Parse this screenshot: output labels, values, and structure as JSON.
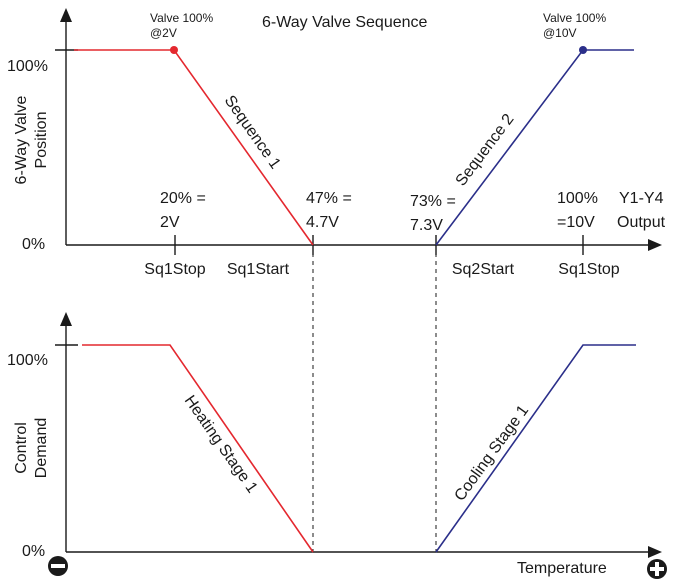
{
  "colors": {
    "heating": "#e4282f",
    "cooling": "#2b2f8a",
    "axis": "#1a1a1a"
  },
  "title": "6-Way Valve Sequence",
  "top": {
    "ylabel_line1": "6-Way Valve",
    "ylabel_line2": "Position",
    "ytick_100": "100%",
    "ytick_0": "0%",
    "valve_left_line1": "Valve 100%",
    "valve_left_line2": "@2V",
    "valve_right_line1": "Valve 100%",
    "valve_right_line2": "@10V",
    "seq1": "Sequence 1",
    "seq2": "Sequence 2",
    "v20_line1": "20% =",
    "v20_line2": "2V",
    "v47_line1": "47% =",
    "v47_line2": "4.7V",
    "v73_line1": "73% =",
    "v73_line2": "7.3V",
    "v100_line1": "100%",
    "v100_line2": "=10V",
    "output_line1": "Y1-Y4",
    "output_line2": "Output",
    "sq1stop_left": "Sq1Stop",
    "sq1start": "Sq1Start",
    "sq2start": "Sq2Start",
    "sq1stop_right": "Sq1Stop"
  },
  "bottom": {
    "ylabel_line1": "Control",
    "ylabel_line2": "Demand",
    "ytick_100": "100%",
    "ytick_0": "0%",
    "heating": "Heating Stage 1",
    "cooling": "Cooling Stage 1",
    "xlabel": "Temperature"
  },
  "icons": {
    "minus": "minus-circle-icon",
    "plus": "plus-circle-icon"
  },
  "chart_data": [
    {
      "type": "line",
      "title": "6-Way Valve Sequence",
      "ylabel": "6-Way Valve Position",
      "xlabel": "Y1-Y4 Output",
      "series": [
        {
          "name": "Sequence 1",
          "x": [
            0,
            2,
            4.7
          ],
          "y": [
            100,
            100,
            0
          ]
        },
        {
          "name": "Sequence 2",
          "x": [
            7.3,
            10,
            10.5
          ],
          "y": [
            0,
            100,
            100
          ]
        }
      ],
      "ylim": [
        0,
        100
      ]
    },
    {
      "type": "line",
      "ylabel": "Control Demand",
      "xlabel": "Temperature",
      "series": [
        {
          "name": "Heating Stage 1",
          "x": [
            0,
            2,
            4.7
          ],
          "y": [
            100,
            100,
            0
          ]
        },
        {
          "name": "Cooling Stage 1",
          "x": [
            7.3,
            10,
            10.5
          ],
          "y": [
            0,
            100,
            100
          ]
        }
      ],
      "ylim": [
        0,
        100
      ]
    }
  ]
}
